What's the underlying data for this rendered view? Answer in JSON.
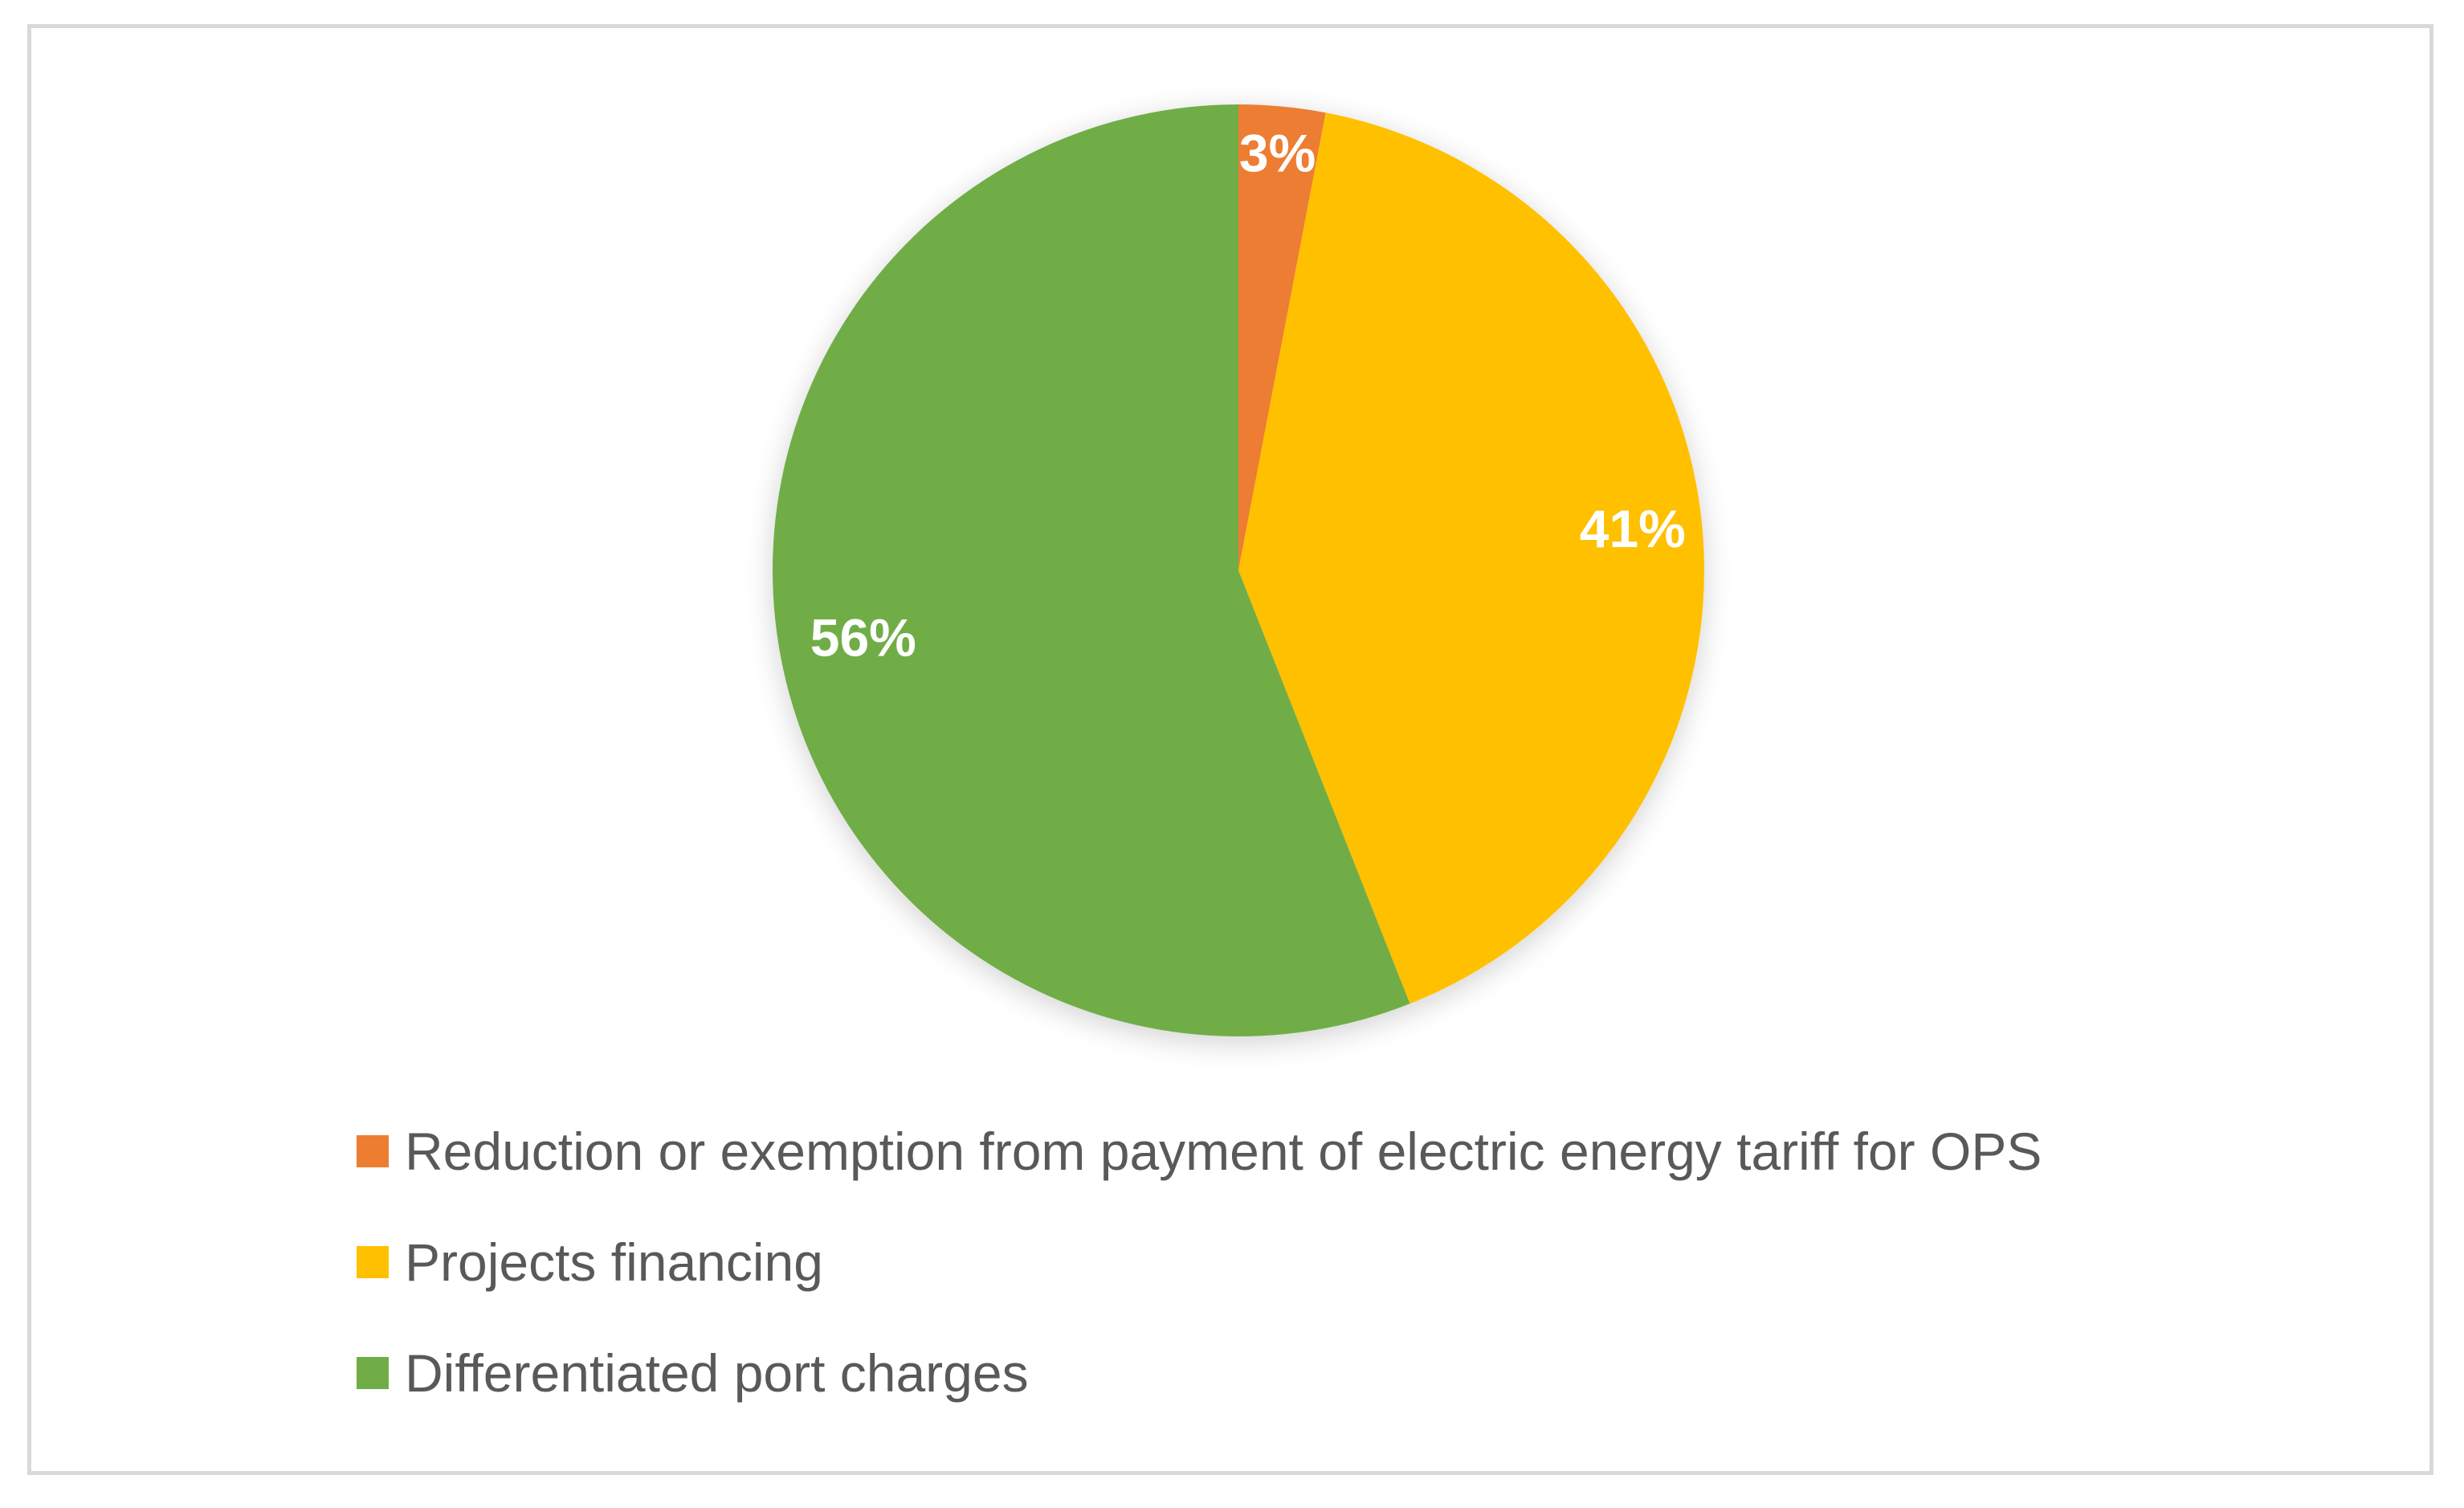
{
  "chart_data": {
    "type": "pie",
    "categories": [
      "Reduction or exemption from payment of electric energy tariff for OPS",
      "Projects financing",
      "Differentiated port charges"
    ],
    "values": [
      3,
      41,
      56
    ],
    "data_labels": [
      "3%",
      "41%",
      "56%"
    ],
    "colors": [
      "#ed7d31",
      "#ffc000",
      "#70ad47"
    ],
    "title": "",
    "legend_position": "bottom",
    "start_angle": "12 o'clock",
    "direction": "clockwise"
  },
  "legend": {
    "items": [
      {
        "label": "Reduction or exemption from payment of electric energy tariff for OPS",
        "color": "#ed7d31"
      },
      {
        "label": "Projects financing",
        "color": "#ffc000"
      },
      {
        "label": "Differentiated port charges",
        "color": "#70ad47"
      }
    ]
  }
}
